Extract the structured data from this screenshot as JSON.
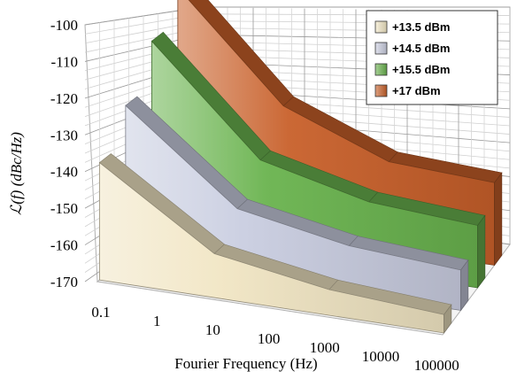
{
  "chart_data": {
    "type": "area",
    "style": "3d-ribbon",
    "xscale": "log",
    "xlabel": "Fourier Frequency (Hz)",
    "ylabel": "ℒ(f) (dBc/Hz)",
    "ylim": [
      -170,
      -100
    ],
    "x_tick_labels": [
      "0.1",
      "1",
      "10",
      "100",
      "1000",
      "10000",
      "100000"
    ],
    "y_tick_labels": [
      "-100",
      "-110",
      "-120",
      "-130",
      "-140",
      "-150",
      "-160",
      "-170"
    ],
    "grid": true,
    "legend_position": "top-right",
    "x": [
      0.1,
      10,
      1000,
      100000
    ],
    "series": [
      {
        "name": "+13.5 dBm",
        "color": "#f1e6c4",
        "values": [
          -138,
          -158,
          -163,
          -165
        ]
      },
      {
        "name": "+14.5 dBm",
        "color": "#c9cde0",
        "values": [
          -128,
          -151.5,
          -157,
          -159
        ]
      },
      {
        "name": "+15.5 dBm",
        "color": "#6ab34e",
        "values": [
          -116,
          -144,
          -151,
          -153
        ]
      },
      {
        "name": "+17 dBm",
        "color": "#c8602a",
        "values": [
          -107,
          -135,
          -146,
          -147.5
        ]
      }
    ]
  }
}
